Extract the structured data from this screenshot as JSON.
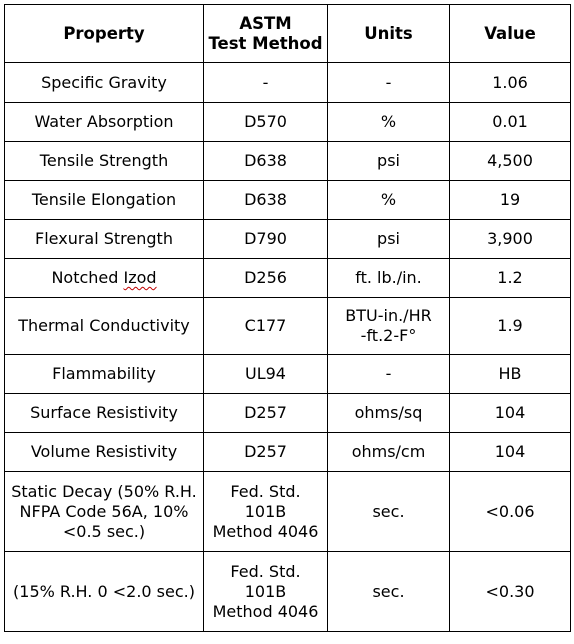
{
  "table": {
    "headers": {
      "property": "Property",
      "method": "ASTM\nTest Method",
      "units": "Units",
      "value": "Value"
    },
    "rows": [
      {
        "property": "Specific Gravity",
        "method": "-",
        "units": "-",
        "value": "1.06"
      },
      {
        "property": "Water Absorption",
        "method": "D570",
        "units": "%",
        "value": "0.01"
      },
      {
        "property": "Tensile Strength",
        "method": "D638",
        "units": "psi",
        "value": "4,500"
      },
      {
        "property": "Tensile Elongation",
        "method": "D638",
        "units": "%",
        "value": "19"
      },
      {
        "property": "Flexural Strength",
        "method": "D790",
        "units": "psi",
        "value": "3,900"
      },
      {
        "property_prefix": "Notched ",
        "property_word": "Izod",
        "method": "D256",
        "units": "ft. lb./in.",
        "value": "1.2"
      },
      {
        "property": "Thermal Conductivity",
        "method": "C177",
        "units": "BTU-in./HR\n-ft.2-F°",
        "value": "1.9"
      },
      {
        "property": "Flammability",
        "method": "UL94",
        "units": "-",
        "value": "HB"
      },
      {
        "property": "Surface Resistivity",
        "method": "D257",
        "units": "ohms/sq",
        "value": "104"
      },
      {
        "property": "Volume Resistivity",
        "method": "D257",
        "units": "ohms/cm",
        "value": "104"
      },
      {
        "property": "Static Decay (50% R.H.\nNFPA Code 56A, 10%\n<0.5 sec.)",
        "method": "Fed. Std.\n101B\nMethod 4046",
        "units": "sec.",
        "value": "<0.06"
      },
      {
        "property": "(15% R.H. 0 <2.0 sec.)",
        "method": "Fed. Std.\n101B\nMethod 4046",
        "units": "sec.",
        "value": "<0.30"
      }
    ]
  }
}
